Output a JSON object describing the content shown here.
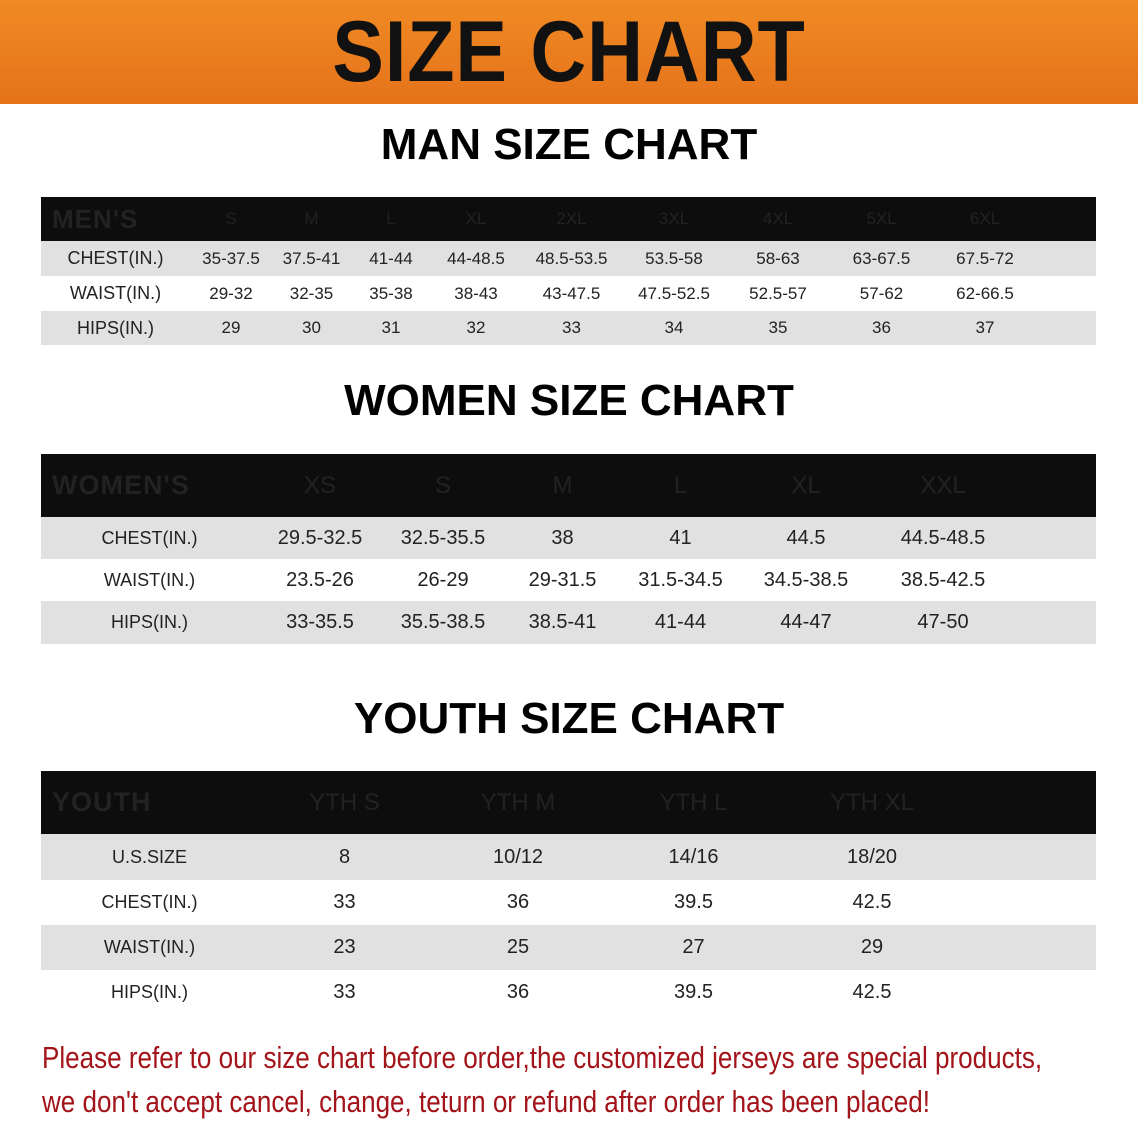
{
  "banner": {
    "title": "SIZE CHART",
    "color": "#e97d1f"
  },
  "men": {
    "title": "MAN SIZE CHART",
    "header_label": "MEN'S",
    "sizes": [
      "S",
      "M",
      "L",
      "XL",
      "2XL",
      "3XL",
      "4XL",
      "5XL",
      "6XL"
    ],
    "rows": [
      {
        "label": "CHEST(IN.)",
        "values": [
          "35-37.5",
          "37.5-41",
          "41-44",
          "44-48.5",
          "48.5-53.5",
          "53.5-58",
          "58-63",
          "63-67.5",
          "67.5-72"
        ]
      },
      {
        "label": "WAIST(IN.)",
        "values": [
          "29-32",
          "32-35",
          "35-38",
          "38-43",
          "43-47.5",
          "47.5-52.5",
          "52.5-57",
          "57-62",
          "62-66.5"
        ]
      },
      {
        "label": "HIPS(IN.)",
        "values": [
          "29",
          "30",
          "31",
          "32",
          "33",
          "34",
          "35",
          "36",
          "37"
        ]
      }
    ]
  },
  "women": {
    "title": "WOMEN SIZE CHART",
    "header_label": "WOMEN'S",
    "sizes": [
      "XS",
      "S",
      "M",
      "L",
      "XL",
      "XXL"
    ],
    "rows": [
      {
        "label": "CHEST(IN.)",
        "values": [
          "29.5-32.5",
          "32.5-35.5",
          "38",
          "41",
          "44.5",
          "44.5-48.5"
        ]
      },
      {
        "label": "WAIST(IN.)",
        "values": [
          "23.5-26",
          "26-29",
          "29-31.5",
          "31.5-34.5",
          "34.5-38.5",
          "38.5-42.5"
        ]
      },
      {
        "label": "HIPS(IN.)",
        "values": [
          "33-35.5",
          "35.5-38.5",
          "38.5-41",
          "41-44",
          "44-47",
          "47-50"
        ]
      }
    ]
  },
  "youth": {
    "title": "YOUTH SIZE CHART",
    "header_label": "YOUTH",
    "sizes": [
      "YTH S",
      "YTH M",
      "YTH L",
      "YTH XL"
    ],
    "rows": [
      {
        "label": "U.S.SIZE",
        "values": [
          "8",
          "10/12",
          "14/16",
          "18/20"
        ]
      },
      {
        "label": "CHEST(IN.)",
        "values": [
          "33",
          "36",
          "39.5",
          "42.5"
        ]
      },
      {
        "label": "WAIST(IN.)",
        "values": [
          "23",
          "25",
          "27",
          "29"
        ]
      },
      {
        "label": "HIPS(IN.)",
        "values": [
          "33",
          "36",
          "39.5",
          "42.5"
        ]
      }
    ]
  },
  "note": {
    "line1": "Please refer to our size chart before order,the customized jerseys are special products,",
    "line2": "we don't accept cancel, change, teturn or refund after order has been placed!",
    "color": "#a3141a"
  }
}
